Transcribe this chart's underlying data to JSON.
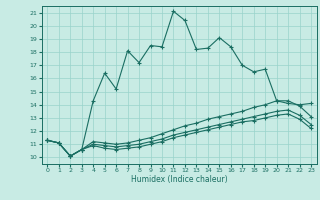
{
  "title": "",
  "xlabel": "Humidex (Indice chaleur)",
  "xlim": [
    -0.5,
    23.5
  ],
  "ylim": [
    9.5,
    21.5
  ],
  "xticks": [
    0,
    1,
    2,
    3,
    4,
    5,
    6,
    7,
    8,
    9,
    10,
    11,
    12,
    13,
    14,
    15,
    16,
    17,
    18,
    19,
    20,
    21,
    22,
    23
  ],
  "yticks": [
    10,
    11,
    12,
    13,
    14,
    15,
    16,
    17,
    18,
    19,
    20,
    21
  ],
  "bg_color": "#c8ebe4",
  "line_color": "#1a6e62",
  "grid_color": "#99d4cb",
  "line1_x": [
    0,
    1,
    2,
    3,
    4,
    5,
    6,
    7,
    8,
    9,
    10,
    11,
    12,
    13,
    14,
    15,
    16,
    17,
    18,
    19,
    20,
    21,
    22,
    23
  ],
  "line1_y": [
    11.3,
    11.1,
    10.1,
    10.6,
    14.3,
    16.4,
    15.2,
    18.1,
    17.2,
    18.5,
    18.4,
    21.1,
    20.4,
    18.2,
    18.3,
    19.1,
    18.4,
    17.0,
    16.5,
    16.7,
    14.3,
    14.1,
    14.0,
    14.1
  ],
  "line2_x": [
    0,
    1,
    2,
    3,
    4,
    5,
    6,
    7,
    8,
    9,
    10,
    11,
    12,
    13,
    14,
    15,
    16,
    17,
    18,
    19,
    20,
    21,
    22,
    23
  ],
  "line2_y": [
    11.3,
    11.1,
    10.1,
    10.6,
    11.2,
    11.1,
    11.0,
    11.1,
    11.3,
    11.5,
    11.8,
    12.1,
    12.4,
    12.6,
    12.9,
    13.1,
    13.3,
    13.5,
    13.8,
    14.0,
    14.3,
    14.3,
    13.9,
    13.1
  ],
  "line3_x": [
    0,
    1,
    2,
    3,
    4,
    5,
    6,
    7,
    8,
    9,
    10,
    11,
    12,
    13,
    14,
    15,
    16,
    17,
    18,
    19,
    20,
    21,
    22,
    23
  ],
  "line3_y": [
    11.3,
    11.1,
    10.1,
    10.6,
    11.0,
    10.9,
    10.8,
    10.9,
    11.0,
    11.2,
    11.4,
    11.7,
    11.9,
    12.1,
    12.3,
    12.5,
    12.7,
    12.9,
    13.1,
    13.3,
    13.5,
    13.6,
    13.2,
    12.5
  ],
  "line4_x": [
    0,
    1,
    2,
    3,
    4,
    5,
    6,
    7,
    8,
    9,
    10,
    11,
    12,
    13,
    14,
    15,
    16,
    17,
    18,
    19,
    20,
    21,
    22,
    23
  ],
  "line4_y": [
    11.3,
    11.1,
    10.1,
    10.6,
    10.9,
    10.7,
    10.6,
    10.7,
    10.8,
    11.0,
    11.2,
    11.5,
    11.7,
    11.9,
    12.1,
    12.3,
    12.5,
    12.7,
    12.8,
    13.0,
    13.2,
    13.3,
    12.9,
    12.2
  ]
}
